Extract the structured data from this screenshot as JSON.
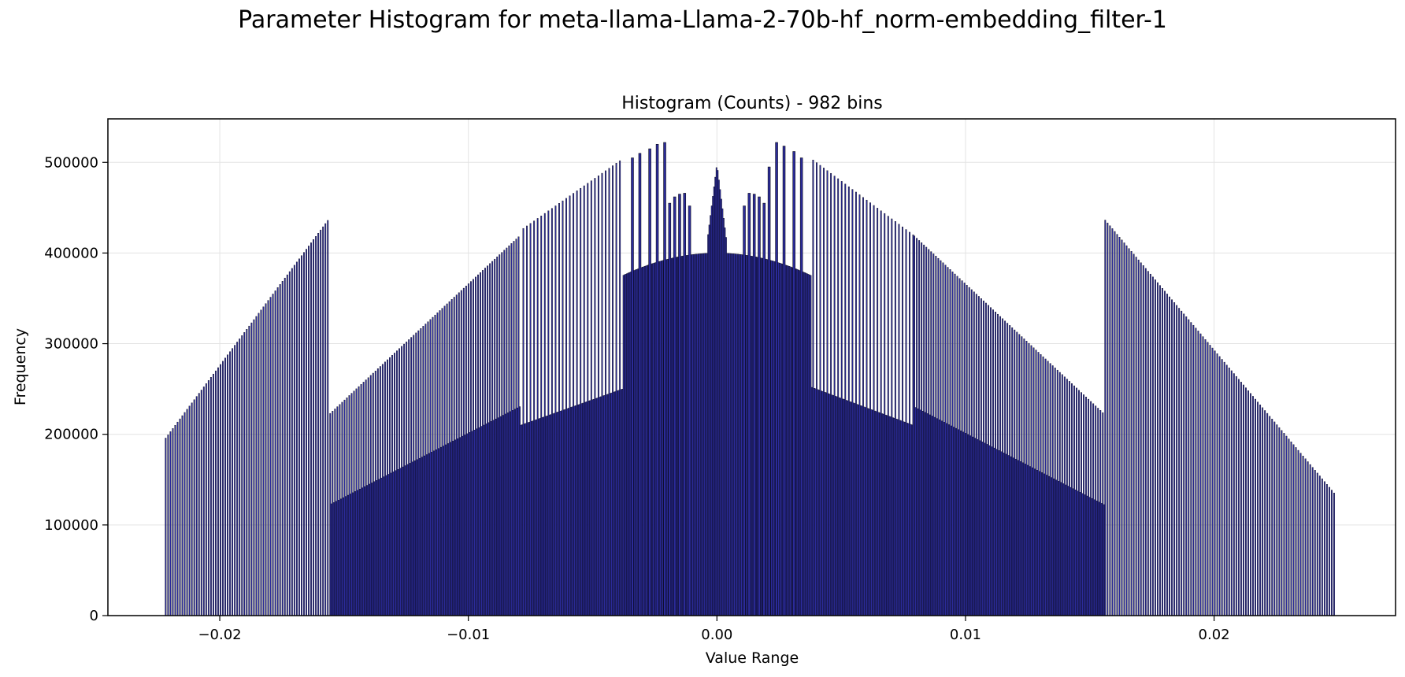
{
  "figure": {
    "suptitle": "Parameter Histogram for meta-llama-Llama-2-70b-hf_norm-embedding_filter-1"
  },
  "chart_data": {
    "type": "bar",
    "title": "Histogram (Counts) - 982 bins",
    "xlabel": "Value Range",
    "ylabel": "Frequency",
    "xlim": [
      -0.0245,
      0.0273
    ],
    "ylim": [
      0,
      548000
    ],
    "grid": true,
    "bar_color": "#2b2b99",
    "edge_color": "#000000",
    "x_ticks": [
      {
        "value": -0.02,
        "label": "−0.02"
      },
      {
        "value": -0.01,
        "label": "−0.01"
      },
      {
        "value": 0.0,
        "label": "0.00"
      },
      {
        "value": 0.01,
        "label": "0.01"
      },
      {
        "value": 0.02,
        "label": "0.02"
      }
    ],
    "y_ticks": [
      {
        "value": 0,
        "label": "0"
      },
      {
        "value": 100000,
        "label": "100000"
      },
      {
        "value": 200000,
        "label": "200000"
      },
      {
        "value": 300000,
        "label": "300000"
      },
      {
        "value": 400000,
        "label": "400000"
      },
      {
        "value": 500000,
        "label": "500000"
      }
    ],
    "bins": {
      "count": 982,
      "range": [
        -0.0222,
        0.0249
      ],
      "note_profile": "piecewise counts read from the plot"
    },
    "profile": {
      "left_tail": {
        "from": -0.0222,
        "to": -0.0156,
        "start": 195000,
        "end": 438000
      },
      "left_shoulder": {
        "from": -0.0156,
        "to": -0.0079,
        "start": 222000,
        "end": 420000
      },
      "left_inner_sparse": {
        "from": -0.0079,
        "to": -0.004,
        "start": 425000,
        "end": 500000
      },
      "left_dense_low": {
        "from": -0.0079,
        "to": -0.0038,
        "start": 210000,
        "end": 250000
      },
      "center_band": {
        "from": -0.0038,
        "to": 0.0038,
        "start": 375000,
        "peak": 400000,
        "end": 378000
      },
      "center_spike": {
        "x": 0.0,
        "peak": 498000
      },
      "right_inner_sparse": {
        "from": 0.004,
        "to": 0.0079,
        "start": 500000,
        "end": 420000
      },
      "right_dense_low": {
        "from": 0.004,
        "to": 0.0079,
        "start": 250000,
        "end": 210000
      },
      "right_shoulder": {
        "from": 0.0079,
        "to": 0.0156,
        "start": 420000,
        "end": 222000
      },
      "right_tail": {
        "from": 0.0156,
        "to": 0.0249,
        "start": 437000,
        "end": 133000
      }
    },
    "highlighted_bars": [
      {
        "x": -0.0034,
        "value": 505000
      },
      {
        "x": -0.0031,
        "value": 510000
      },
      {
        "x": -0.0027,
        "value": 515000
      },
      {
        "x": -0.0024,
        "value": 520000
      },
      {
        "x": -0.0021,
        "value": 522000
      },
      {
        "x": -0.0019,
        "value": 455000
      },
      {
        "x": -0.0017,
        "value": 462000
      },
      {
        "x": -0.0015,
        "value": 465000
      },
      {
        "x": -0.0013,
        "value": 466000
      },
      {
        "x": -0.0011,
        "value": 452000
      },
      {
        "x": 0.0011,
        "value": 452000
      },
      {
        "x": 0.0013,
        "value": 466000
      },
      {
        "x": 0.0015,
        "value": 465000
      },
      {
        "x": 0.0017,
        "value": 462000
      },
      {
        "x": 0.0019,
        "value": 455000
      },
      {
        "x": 0.0021,
        "value": 495000
      },
      {
        "x": 0.0024,
        "value": 522000
      },
      {
        "x": 0.0027,
        "value": 518000
      },
      {
        "x": 0.0031,
        "value": 512000
      },
      {
        "x": 0.0034,
        "value": 505000
      }
    ]
  }
}
